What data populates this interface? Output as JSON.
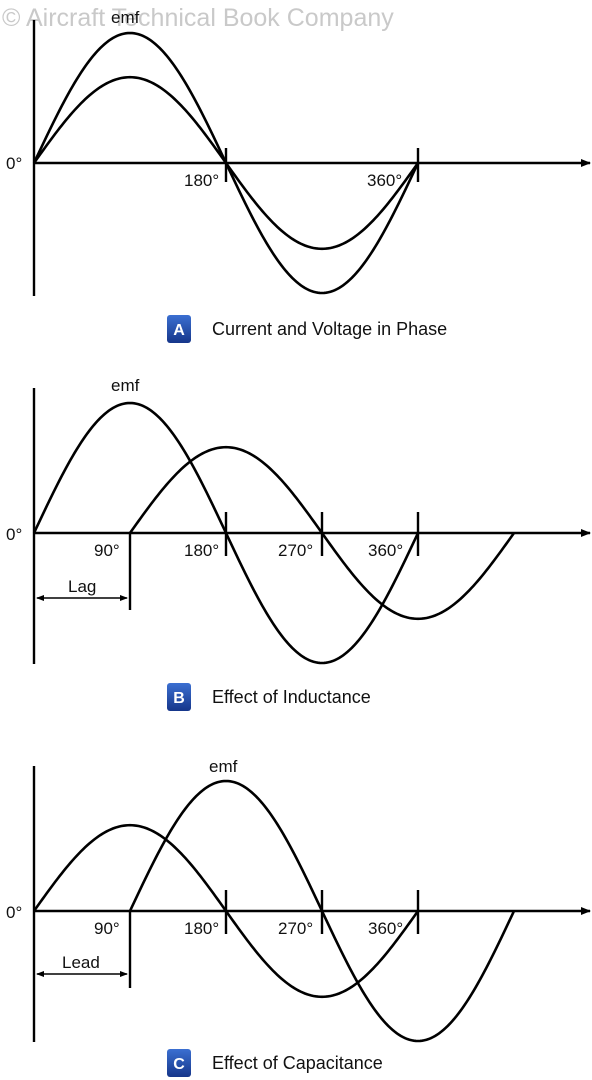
{
  "watermark": "© Aircraft Technical Book Company",
  "diagrams": [
    {
      "id": "A",
      "badge": "A",
      "caption": "Current and Voltage in Phase",
      "origin_label": "0°",
      "tick_labels": [
        "180°",
        "360°"
      ],
      "emf_label": "emf",
      "waves": [
        {
          "name": "emf",
          "amplitude": 1.0,
          "phase_shift_deg": 0
        },
        {
          "name": "current",
          "amplitude": 0.66,
          "phase_shift_deg": 0
        }
      ]
    },
    {
      "id": "B",
      "badge": "B",
      "caption": "Effect of Inductance",
      "origin_label": "0°",
      "tick_labels": [
        "90°",
        "180°",
        "270°",
        "360°"
      ],
      "emf_label": "emf",
      "dimension_label": "Lag",
      "waves": [
        {
          "name": "emf",
          "amplitude": 1.0,
          "phase_shift_deg": 0
        },
        {
          "name": "current",
          "amplitude": 0.66,
          "phase_shift_deg": 90
        }
      ]
    },
    {
      "id": "C",
      "badge": "C",
      "caption": "Effect of Capacitance",
      "origin_label": "0°",
      "tick_labels": [
        "90°",
        "180°",
        "270°",
        "360°"
      ],
      "emf_label": "emf",
      "dimension_label": "Lead",
      "waves": [
        {
          "name": "current",
          "amplitude": 0.66,
          "phase_shift_deg": 0
        },
        {
          "name": "emf",
          "amplitude": 1.0,
          "phase_shift_deg": 90
        }
      ]
    }
  ],
  "colors": {
    "badge_top": "#3b6fd1",
    "badge_bottom": "#16368a",
    "line": "#000000",
    "watermark": "#c9c9c9"
  }
}
